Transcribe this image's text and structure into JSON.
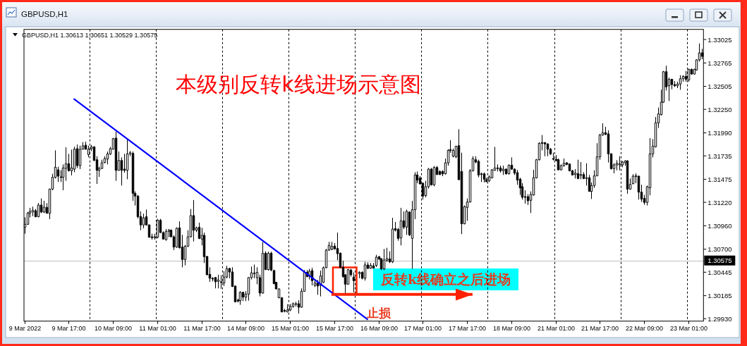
{
  "chart_data": {
    "type": "candlestick",
    "title": "本级别反转k线进场示意图",
    "subtitle": "GBPUSD,H1 1.30613 1.30651 1.30529 1.30575",
    "annotations": [
      "GBPUSD,H1",
      {
        "text": "反转k线确立之后进场",
        "y": 1.302
      },
      "止损"
    ],
    "color": "#000000",
    "categories": [
      "9 Mar 2022",
      null,
      null,
      null,
      null,
      null,
      null,
      null,
      null,
      null,
      null,
      null,
      null,
      null,
      null,
      null,
      "9 Mar 17:00",
      null,
      null,
      null,
      null,
      null,
      null,
      null,
      null,
      null,
      null,
      null,
      null,
      null,
      null,
      null,
      "10 Mar 09:00",
      null,
      null,
      null,
      null,
      null,
      null,
      null,
      null,
      null,
      null,
      null,
      null,
      null,
      null,
      null,
      "11 Mar 01:00",
      null,
      null,
      null,
      null,
      null,
      null,
      null,
      null,
      null,
      null,
      null,
      null,
      null,
      null,
      null,
      "11 Mar 17:00",
      null,
      null,
      null,
      null,
      null,
      null,
      null,
      null,
      null,
      null,
      null,
      null,
      null,
      null,
      null,
      "14 Mar 09:00",
      null,
      null,
      null,
      null,
      null,
      null,
      null,
      null,
      null,
      null,
      null,
      null,
      null,
      null,
      null,
      "15 Mar 01:00",
      null,
      null,
      null,
      null,
      null,
      null,
      null,
      null,
      null,
      null,
      null,
      null,
      null,
      null,
      null,
      "15 Mar 17:00",
      null,
      null,
      null,
      null,
      null,
      null,
      null,
      null,
      null,
      null,
      null,
      null,
      null,
      null,
      null,
      "16 Mar 09:00",
      null,
      null,
      null,
      null,
      null,
      null,
      null,
      null,
      null,
      null,
      null,
      null,
      null,
      null,
      null,
      "17 Mar 01:00",
      null,
      null,
      null,
      null,
      null,
      null,
      null,
      null,
      null,
      null,
      null,
      null,
      null,
      null,
      null,
      "17 Mar 17:00",
      null,
      null,
      null,
      null,
      null,
      null,
      null,
      null,
      null,
      null,
      null,
      null,
      null,
      null,
      null,
      "18 Mar 09:00",
      null,
      null,
      null,
      null,
      null,
      null,
      null,
      null,
      null,
      null,
      null,
      null,
      null,
      null,
      null,
      "21 Mar 01:00",
      null,
      null,
      null,
      null,
      null,
      null,
      null,
      null,
      null,
      null,
      null,
      null,
      null,
      null,
      null,
      "21 Mar 17:00",
      null,
      null,
      null,
      null,
      null,
      null,
      null,
      null,
      null,
      null,
      null,
      null,
      null,
      null,
      null,
      "22 Mar 09:00",
      null,
      null,
      null,
      null,
      null,
      null,
      null,
      null,
      null,
      null,
      null,
      null,
      null,
      null,
      null,
      "23 Mar 01:00",
      null,
      null,
      null,
      null,
      null
    ],
    "ohlc": [
      [
        1.30945,
        1.31054,
        1.30872,
        1.30976
      ],
      [
        1.30976,
        1.31112,
        1.30971,
        1.31101
      ],
      [
        1.31101,
        1.31159,
        1.31054,
        1.3112
      ],
      [
        1.31114,
        1.31172,
        1.31067,
        1.31133
      ],
      [
        1.31127,
        1.31146,
        1.31054,
        1.3106
      ],
      [
        1.3106,
        1.31211,
        1.31054,
        1.3119
      ],
      [
        1.3119,
        1.31263,
        1.31101,
        1.31112
      ],
      [
        1.31112,
        1.31237,
        1.31101,
        1.31166
      ],
      [
        1.31164,
        1.31211,
        1.31093,
        1.31099
      ],
      [
        1.31099,
        1.31372,
        1.31034,
        1.31367
      ],
      [
        1.31367,
        1.31536,
        1.31354,
        1.31497
      ],
      [
        1.31497,
        1.31796,
        1.31484,
        1.31609
      ],
      [
        1.3158,
        1.31614,
        1.31445,
        1.3151
      ],
      [
        1.31502,
        1.31575,
        1.31445,
        1.31497
      ],
      [
        1.31497,
        1.3164,
        1.31354,
        1.31601
      ],
      [
        1.31596,
        1.3183,
        1.31458,
        1.31648
      ],
      [
        1.31648,
        1.31757,
        1.31562,
        1.3157
      ],
      [
        1.3157,
        1.31804,
        1.31518,
        1.31601
      ],
      [
        1.31588,
        1.31835,
        1.31554,
        1.31809
      ],
      [
        1.31815,
        1.31861,
        1.31601,
        1.31627
      ],
      [
        1.31627,
        1.31848,
        1.31588,
        1.31809
      ],
      [
        1.31809,
        1.31887,
        1.31804,
        1.31846
      ],
      [
        1.31854,
        1.31893,
        1.31804,
        1.31809
      ],
      [
        1.31749,
        1.31848,
        1.31718,
        1.31809
      ],
      [
        1.31815,
        1.31856,
        1.31788,
        1.31835
      ],
      [
        1.31835,
        1.31841,
        1.31679,
        1.31684
      ],
      [
        1.31692,
        1.31731,
        1.31424,
        1.31575
      ],
      [
        1.31575,
        1.31614,
        1.31502,
        1.31596
      ],
      [
        1.31596,
        1.31692,
        1.31588,
        1.31658
      ],
      [
        1.31661,
        1.31731,
        1.31653,
        1.31705
      ],
      [
        1.317,
        1.31783,
        1.3164,
        1.31757
      ],
      [
        1.31757,
        1.31835,
        1.31744,
        1.31815
      ],
      [
        1.31809,
        1.31934,
        1.31804,
        1.31926
      ],
      [
        1.31932,
        1.32005,
        1.31458,
        1.31575
      ],
      [
        1.31575,
        1.31783,
        1.3157,
        1.31684
      ],
      [
        1.31684,
        1.31718,
        1.31406,
        1.31575
      ],
      [
        1.31588,
        1.31757,
        1.31549,
        1.31575
      ],
      [
        1.31575,
        1.31919,
        1.31476,
        1.31757
      ],
      [
        1.31757,
        1.31788,
        1.31731,
        1.3177
      ],
      [
        1.31762,
        1.31783,
        1.31237,
        1.3132
      ],
      [
        1.3132,
        1.31341,
        1.31185,
        1.31289
      ],
      [
        1.31289,
        1.31302,
        1.31041,
        1.3106
      ],
      [
        1.31062,
        1.3112,
        1.30911,
        1.30969
      ],
      [
        1.30969,
        1.31094,
        1.30932,
        1.31047
      ],
      [
        1.3106,
        1.3114,
        1.30963,
        1.30969
      ],
      [
        1.30969,
        1.30976,
        1.30828,
        1.30833
      ],
      [
        1.30838,
        1.30872,
        1.30807,
        1.30828
      ],
      [
        1.30828,
        1.30872,
        1.30807,
        1.30838
      ],
      [
        1.30833,
        1.31036,
        1.3082,
        1.31021
      ],
      [
        1.31021,
        1.31036,
        1.3088,
        1.30885
      ],
      [
        1.30885,
        1.30898,
        1.30807,
        1.30812
      ],
      [
        1.30807,
        1.30924,
        1.30794,
        1.30898
      ],
      [
        1.30898,
        1.30924,
        1.30833,
        1.30911
      ],
      [
        1.30911,
        1.30919,
        1.30833,
        1.30838
      ],
      [
        1.30838,
        1.30854,
        1.3069,
        1.30724
      ],
      [
        1.30724,
        1.30943,
        1.30716,
        1.30932
      ],
      [
        1.30937,
        1.3101,
        1.30708,
        1.30716
      ],
      [
        1.30724,
        1.30859,
        1.305,
        1.30586
      ],
      [
        1.30586,
        1.30747,
        1.30521,
        1.30734
      ],
      [
        1.30734,
        1.30911,
        1.30724,
        1.30838
      ],
      [
        1.30838,
        1.31146,
        1.30833,
        1.31073
      ],
      [
        1.31073,
        1.31245,
        1.30786,
        1.30911
      ],
      [
        1.30911,
        1.3095,
        1.30891,
        1.30937
      ],
      [
        1.30943,
        1.30995,
        1.30812,
        1.3082
      ],
      [
        1.30812,
        1.30937,
        1.30742,
        1.30854
      ],
      [
        1.30854,
        1.30885,
        1.30547,
        1.30617
      ],
      [
        1.3062,
        1.30625,
        1.30412,
        1.30417
      ],
      [
        1.30422,
        1.305,
        1.30339,
        1.30378
      ],
      [
        1.30378,
        1.30391,
        1.30344,
        1.3037
      ],
      [
        1.30386,
        1.30391,
        1.30266,
        1.30339
      ],
      [
        1.30344,
        1.30417,
        1.30266,
        1.30359
      ],
      [
        1.30339,
        1.30412,
        1.30261,
        1.30333
      ],
      [
        1.30326,
        1.30456,
        1.30292,
        1.30391
      ],
      [
        1.30391,
        1.30516,
        1.30378,
        1.30484
      ],
      [
        1.30487,
        1.30495,
        1.30378,
        1.30448
      ],
      [
        1.30448,
        1.305,
        1.30281,
        1.30287
      ],
      [
        1.30292,
        1.30297,
        1.3011,
        1.30117
      ],
      [
        1.30136,
        1.30151,
        1.3011,
        1.30125
      ],
      [
        1.3013,
        1.30235,
        1.30084,
        1.30222
      ],
      [
        1.30222,
        1.30227,
        1.30125,
        1.30169
      ],
      [
        1.30169,
        1.30235,
        1.30125,
        1.30203
      ],
      [
        1.30203,
        1.30391,
        1.3013,
        1.30386
      ],
      [
        1.30386,
        1.30508,
        1.30365,
        1.30438
      ],
      [
        1.3043,
        1.3053,
        1.30378,
        1.30437
      ],
      [
        1.30385,
        1.305,
        1.30312,
        1.30443
      ],
      [
        1.30385,
        1.30417,
        1.30177,
        1.30214
      ],
      [
        1.30214,
        1.30781,
        1.30208,
        1.30656
      ],
      [
        1.30656,
        1.30677,
        1.30469,
        1.30474
      ],
      [
        1.30474,
        1.30672,
        1.30463,
        1.30656
      ],
      [
        1.30656,
        1.30672,
        1.30456,
        1.30469
      ],
      [
        1.30463,
        1.30474,
        1.30312,
        1.30318
      ],
      [
        1.30333,
        1.30339,
        1.30255,
        1.3026
      ],
      [
        1.30162,
        1.30266,
        1.30156,
        1.3026
      ],
      [
        1.30162,
        1.30169,
        1.3,
        1.30005
      ],
      [
        1.30021,
        1.30039,
        1.3,
        1.30013
      ],
      [
        1.30005,
        1.30091,
        1.3,
        1.30026
      ],
      [
        1.30026,
        1.30091,
        1.30013,
        1.30065
      ],
      [
        1.30065,
        1.30109,
        1.30052,
        1.30096
      ],
      [
        1.30089,
        1.30117,
        1.30065,
        1.30096
      ],
      [
        1.30096,
        1.30135,
        1.29987,
        1.30057
      ],
      [
        1.30057,
        1.30266,
        1.30052,
        1.30234
      ],
      [
        1.30234,
        1.30469,
        1.30229,
        1.30443
      ],
      [
        1.30443,
        1.30469,
        1.30391,
        1.30396
      ],
      [
        1.30404,
        1.30482,
        1.30365,
        1.30456
      ],
      [
        1.30463,
        1.30495,
        1.30299,
        1.30352
      ],
      [
        1.30299,
        1.3037,
        1.30281,
        1.30326
      ],
      [
        1.30326,
        1.30359,
        1.30195,
        1.30292
      ],
      [
        1.30299,
        1.30463,
        1.30177,
        1.30404
      ],
      [
        1.30333,
        1.30508,
        1.30326,
        1.30495
      ],
      [
        1.30495,
        1.30703,
        1.30489,
        1.3069
      ],
      [
        1.3069,
        1.30781,
        1.30682,
        1.30742
      ],
      [
        1.30698,
        1.30781,
        1.3069,
        1.30734
      ],
      [
        1.30734,
        1.30768,
        1.30698,
        1.30703
      ],
      [
        1.30708,
        1.30885,
        1.30578,
        1.30651
      ],
      [
        1.30656,
        1.30664,
        1.30489,
        1.305
      ],
      [
        1.305,
        1.30573,
        1.30385,
        1.30396
      ],
      [
        1.30417,
        1.30422,
        1.30214,
        1.30312
      ],
      [
        1.30312,
        1.30482,
        1.30307,
        1.30474
      ],
      [
        1.30469,
        1.30482,
        1.30396,
        1.30417
      ],
      [
        1.30391,
        1.30443,
        1.30221,
        1.30352
      ],
      null,
      [
        1.3043,
        1.30456,
        1.30378,
        1.30443
      ],
      [
        1.30443,
        1.30456,
        1.30365,
        1.30378
      ],
      [
        1.30378,
        1.3056,
        1.30352,
        1.30526
      ],
      [
        1.30526,
        1.30555,
        1.30482,
        1.30487
      ],
      [
        1.3049,
        1.30547,
        1.30482,
        1.30521
      ],
      [
        1.30516,
        1.30547,
        1.30487,
        1.3049
      ],
      [
        1.30521,
        1.30638,
        1.30503,
        1.30612
      ],
      [
        1.30617,
        1.30625,
        1.30581,
        1.30591
      ],
      [
        1.30596,
        1.30599,
        1.30469,
        1.30482
      ],
      [
        1.30482,
        1.30703,
        1.30469,
        1.30581
      ],
      [
        1.30578,
        1.30716,
        1.3056,
        1.30596
      ],
      [
        1.30594,
        1.30677,
        1.30547,
        1.3056
      ],
      [
        1.3056,
        1.31049,
        1.30547,
        1.30924
      ],
      [
        1.30929,
        1.31002,
        1.30898,
        1.30911
      ],
      [
        1.30919,
        1.30937,
        1.30794,
        1.3082
      ],
      [
        1.30825,
        1.31159,
        1.30742,
        1.31015
      ],
      [
        1.31015,
        1.3112,
        1.30924,
        1.30945
      ],
      [
        1.30945,
        1.31138,
        1.30859,
        1.3112
      ],
      [
        1.31112,
        1.3112,
        1.30846,
        1.30859
      ],
      [
        1.3082,
        1.31237,
        1.30482,
        1.31138
      ],
      [
        1.31138,
        1.31554,
        1.31034,
        1.31523
      ],
      [
        1.31523,
        1.31562,
        1.31432,
        1.31466
      ],
      [
        1.31489,
        1.3151,
        1.31419,
        1.31424
      ],
      [
        1.31432,
        1.3144,
        1.3125,
        1.31289
      ],
      [
        1.31294,
        1.31458,
        1.31276,
        1.31393
      ],
      [
        1.31393,
        1.31601,
        1.31372,
        1.31588
      ],
      [
        1.31588,
        1.31601,
        1.31406,
        1.31414
      ],
      [
        1.31414,
        1.31622,
        1.31398,
        1.31606
      ],
      [
        1.31606,
        1.31622,
        1.31523,
        1.31528
      ],
      [
        1.31562,
        1.31575,
        1.31523,
        1.31528
      ],
      [
        1.31562,
        1.31575,
        1.3151,
        1.31536
      ],
      [
        1.31536,
        1.31705,
        1.31528,
        1.31658
      ],
      [
        1.31658,
        1.31809,
        1.31627,
        1.31796
      ],
      [
        1.31804,
        1.31908,
        1.3177,
        1.31796
      ],
      [
        1.31731,
        1.31815,
        1.31718,
        1.31796
      ],
      [
        1.31726,
        1.31848,
        1.3171,
        1.31841
      ],
      [
        1.31848,
        1.3203,
        1.31466,
        1.31471
      ],
      [
        1.31562,
        1.3177,
        1.30867,
        1.30982
      ],
      [
        1.30982,
        1.31185,
        1.30976,
        1.31172
      ],
      [
        1.31164,
        1.31263,
        1.31015,
        1.31224
      ],
      [
        1.31224,
        1.31588,
        1.31216,
        1.3157
      ],
      [
        1.3157,
        1.31731,
        1.31562,
        1.31705
      ],
      [
        1.31692,
        1.31731,
        1.31653,
        1.31666
      ],
      [
        1.31674,
        1.31692,
        1.31497,
        1.31523
      ],
      [
        1.31528,
        1.31549,
        1.31445,
        1.31536
      ],
      [
        1.31536,
        1.31549,
        1.3144,
        1.31476
      ],
      [
        1.31471,
        1.31492,
        1.3144,
        1.3145
      ],
      [
        1.31458,
        1.31518,
        1.31445,
        1.31502
      ],
      [
        1.31492,
        1.31588,
        1.31484,
        1.3158
      ],
      [
        1.31575,
        1.31835,
        1.3157,
        1.31601
      ],
      [
        1.31601,
        1.3164,
        1.31562,
        1.31596
      ],
      [
        1.31601,
        1.31627,
        1.31549,
        1.3157
      ],
      [
        1.3157,
        1.31627,
        1.31523,
        1.31588
      ],
      [
        1.31588,
        1.31596,
        1.31528,
        1.31536
      ],
      [
        1.31536,
        1.3164,
        1.31528,
        1.31632
      ],
      [
        1.31632,
        1.31718,
        1.3158,
        1.31588
      ],
      [
        1.31588,
        1.31596,
        1.31523,
        1.31544
      ],
      [
        1.31549,
        1.3158,
        1.31414,
        1.31466
      ],
      [
        1.31476,
        1.31492,
        1.31302,
        1.3138
      ],
      [
        1.31393,
        1.31432,
        1.3125,
        1.31276
      ],
      [
        1.31283,
        1.31354,
        1.31205,
        1.31276
      ],
      [
        1.31283,
        1.3131,
        1.3119,
        1.31237
      ],
      [
        1.31242,
        1.31341,
        1.31101,
        1.31307
      ],
      [
        1.31302,
        1.3158,
        1.31294,
        1.31492
      ],
      [
        1.31492,
        1.317,
        1.31484,
        1.31692
      ],
      [
        1.31692,
        1.31887,
        1.31684,
        1.31874
      ],
      [
        1.31882,
        1.31966,
        1.31796,
        1.31874
      ],
      [
        1.31882,
        1.31887,
        1.31731,
        1.31867
      ],
      [
        1.31867,
        1.31874,
        1.31731,
        1.31809
      ],
      [
        1.31809,
        1.31822,
        1.31744,
        1.31757
      ],
      [
        1.31705,
        1.3177,
        1.31684,
        1.31697
      ],
      [
        1.31697,
        1.31744,
        1.31674,
        1.31684
      ],
      [
        1.31692,
        1.31705,
        1.31575,
        1.3158
      ],
      [
        1.3158,
        1.3164,
        1.31575,
        1.31627
      ],
      [
        1.31627,
        1.31705,
        1.31614,
        1.31653
      ],
      [
        1.31658,
        1.31664,
        1.31632,
        1.3164
      ],
      [
        1.31645,
        1.31648,
        1.31562,
        1.3157
      ],
      [
        1.3157,
        1.3158,
        1.31518,
        1.31523
      ],
      [
        1.31528,
        1.31588,
        1.31484,
        1.31544
      ],
      [
        1.31539,
        1.31692,
        1.31476,
        1.31484
      ],
      [
        1.31518,
        1.31666,
        1.31476,
        1.31528
      ],
      [
        1.31528,
        1.31554,
        1.31476,
        1.31484
      ],
      [
        1.31484,
        1.31653,
        1.31406,
        1.31492
      ],
      [
        1.31492,
        1.31523,
        1.31341,
        1.31341
      ],
      [
        1.31341,
        1.3144,
        1.31257,
        1.31406
      ],
      [
        1.31406,
        1.31575,
        1.3138,
        1.31513
      ],
      [
        1.31513,
        1.31875,
        1.3151,
        1.31724
      ],
      [
        1.31724,
        1.31979,
        1.31692,
        1.31966
      ],
      [
        1.31966,
        1.32096,
        1.31958,
        1.31992
      ],
      [
        1.31992,
        1.32057,
        1.31966,
        1.31973
      ],
      [
        1.31979,
        1.32018,
        1.31661,
        1.31757
      ],
      [
        1.31757,
        1.31765,
        1.31583,
        1.31593
      ],
      [
        1.31593,
        1.31653,
        1.31541,
        1.31635
      ],
      [
        1.31635,
        1.31687,
        1.31575,
        1.31653
      ],
      [
        1.31635,
        1.31731,
        1.31575,
        1.31646
      ],
      [
        1.31635,
        1.31679,
        1.31609,
        1.31666
      ],
      [
        1.31661,
        1.31687,
        1.31627,
        1.31679
      ],
      [
        1.31679,
        1.31687,
        1.31315,
        1.31367
      ],
      [
        1.31367,
        1.31484,
        1.31359,
        1.31419
      ],
      [
        1.31427,
        1.31531,
        1.31419,
        1.3151
      ],
      [
        1.31505,
        1.31541,
        1.31432,
        1.31515
      ],
      [
        1.3151,
        1.31515,
        1.3125,
        1.31333
      ],
      [
        1.31333,
        1.31415,
        1.31224,
        1.31255
      ],
      [
        1.31263,
        1.31302,
        1.31193,
        1.31219
      ],
      [
        1.31219,
        1.31406,
        1.31185,
        1.31393
      ],
      [
        1.3138,
        1.31932,
        1.31297,
        1.31757
      ],
      [
        1.31757,
        1.31921,
        1.31718,
        1.31843
      ],
      [
        1.31836,
        1.32166,
        1.31828,
        1.32101
      ],
      [
        1.32101,
        1.3227,
        1.32044,
        1.322
      ],
      [
        1.32192,
        1.32468,
        1.32182,
        1.3233
      ],
      [
        1.3233,
        1.32676,
        1.32322,
        1.32668
      ],
      [
        1.32668,
        1.32734,
        1.3246,
        1.32499
      ],
      [
        1.32512,
        1.32603,
        1.32343,
        1.32583
      ],
      [
        1.32583,
        1.3259,
        1.32473,
        1.32525
      ],
      [
        1.32525,
        1.32564,
        1.32499,
        1.32512
      ],
      [
        1.32512,
        1.32557,
        1.32486,
        1.32531
      ],
      [
        1.32531,
        1.32629,
        1.32468,
        1.3259
      ],
      [
        1.3259,
        1.32629,
        1.32557,
        1.32616
      ],
      [
        1.32616,
        1.32676,
        1.32557,
        1.32583
      ],
      [
        1.32577,
        1.32702,
        1.32557,
        1.32694
      ],
      [
        1.32694,
        1.32702,
        1.32635,
        1.32642
      ],
      [
        1.32642,
        1.32702,
        1.32635,
        1.32694
      ],
      [
        1.32687,
        1.32806,
        1.32681,
        1.32799
      ],
      [
        1.32799,
        1.32981,
        1.3278,
        1.32877
      ],
      [
        1.32877,
        1.32921,
        1.32806,
        1.32838
      ]
    ],
    "series": [
      {
        "type": "line",
        "color": "#0000ff",
        "values": [
          null,
          null,
          null,
          null,
          null,
          null,
          null,
          null,
          null,
          null,
          null,
          null,
          null,
          null,
          null,
          null,
          null,
          null,
          1.32364,
          null,
          null,
          null,
          null,
          null,
          null,
          null,
          null,
          null,
          null,
          null,
          null,
          null,
          null,
          null,
          null,
          null,
          null,
          null,
          null,
          null,
          null,
          null,
          null,
          null,
          null,
          null,
          null,
          null,
          null,
          null,
          null,
          null,
          null,
          null,
          null,
          null,
          null,
          null,
          null,
          null,
          null,
          null,
          null,
          null,
          null,
          null,
          null,
          null,
          null,
          null,
          null,
          null,
          null,
          null,
          null,
          null,
          null,
          null,
          null,
          null,
          null,
          null,
          null,
          null,
          null,
          null,
          null,
          null,
          null,
          null,
          null,
          null,
          null,
          null,
          null,
          null,
          null,
          null,
          null,
          null,
          null,
          null,
          null,
          null,
          null,
          null,
          null,
          null,
          null,
          null,
          null,
          null,
          null,
          null,
          null,
          null,
          null,
          null,
          null,
          null,
          null,
          null,
          null,
          null,
          1.29924,
          null,
          null,
          null,
          null,
          null,
          null,
          null,
          null,
          null,
          null,
          null,
          null,
          null,
          null,
          null,
          null,
          null,
          null,
          null,
          null,
          null,
          null,
          null,
          null,
          null,
          null,
          null,
          null,
          null,
          null,
          null,
          null,
          null,
          null,
          null,
          null,
          null,
          null,
          null,
          null,
          null,
          null,
          null,
          null,
          null,
          null,
          null,
          null,
          null,
          null,
          null,
          null,
          null,
          null,
          null,
          null,
          null,
          null,
          null,
          null,
          null,
          null,
          null,
          null,
          null,
          null,
          null,
          null,
          null,
          null,
          null,
          null,
          null,
          null,
          null,
          null,
          null,
          null,
          null,
          null,
          null,
          null,
          null,
          null,
          null,
          null,
          null,
          null,
          null,
          null,
          null,
          null,
          null,
          null,
          null,
          null,
          null,
          null,
          null,
          null,
          null,
          null,
          null,
          null,
          null,
          null,
          null,
          null,
          null,
          null,
          null,
          null,
          null,
          null,
          null,
          null,
          null,
          null,
          null,
          null,
          null
        ]
      },
      {
        "type": "line",
        "color": "#ff2200",
        "values": [
          null,
          null,
          null,
          null,
          null,
          null,
          null,
          null,
          null,
          null,
          null,
          null,
          null,
          null,
          null,
          null,
          null,
          null,
          null,
          null,
          null,
          null,
          null,
          null,
          null,
          null,
          null,
          null,
          null,
          null,
          null,
          null,
          null,
          null,
          null,
          null,
          null,
          null,
          null,
          null,
          null,
          null,
          null,
          null,
          null,
          null,
          null,
          null,
          null,
          null,
          null,
          null,
          null,
          null,
          null,
          null,
          null,
          null,
          null,
          null,
          null,
          null,
          null,
          null,
          null,
          null,
          null,
          null,
          null,
          null,
          null,
          null,
          null,
          null,
          null,
          null,
          null,
          null,
          null,
          null,
          null,
          null,
          null,
          null,
          null,
          null,
          null,
          null,
          null,
          null,
          null,
          null,
          null,
          null,
          null,
          null,
          null,
          null,
          null,
          null,
          null,
          null,
          null,
          null,
          null,
          null,
          null,
          null,
          null,
          null,
          null,
          1.302,
          null,
          null,
          null,
          null,
          null,
          null,
          null,
          null,
          null,
          null,
          null,
          null,
          null,
          null,
          null,
          null,
          null,
          null,
          null,
          null,
          null,
          null,
          null,
          null,
          null,
          null,
          null,
          null,
          null,
          null,
          null,
          null,
          null,
          null,
          null,
          null,
          null,
          null,
          null,
          null,
          null,
          null,
          null,
          null,
          null,
          null,
          null,
          null,
          null,
          null,
          1.302,
          null,
          null,
          null,
          null,
          null,
          null,
          null,
          null,
          null,
          null,
          null,
          null,
          null,
          null,
          null,
          null,
          null,
          null,
          null,
          null,
          null,
          null,
          null,
          null,
          null,
          null,
          null,
          null,
          null,
          null,
          null,
          null,
          null,
          null,
          null,
          null,
          null,
          null,
          null,
          null,
          null,
          null,
          null,
          null,
          null,
          null,
          null,
          null,
          null,
          null,
          null,
          null,
          null,
          null,
          null,
          null,
          null,
          null,
          null,
          null,
          null,
          null,
          null,
          null,
          null,
          null,
          null,
          null,
          null,
          null,
          null,
          null,
          null,
          null,
          null,
          null,
          null,
          null,
          null,
          null,
          null,
          null,
          null
        ]
      }
    ],
    "ylim": [
      1.29903,
      1.33137
    ],
    "yticks": [
      1.33025,
      1.32765,
      1.32505,
      {
        "value": 1.3225,
        "label": "1.32250"
      },
      {
        "value": 1.3199,
        "label": "1.31990"
      },
      1.31735,
      1.31475,
      {
        "value": 1.3122,
        "label": "1.31220"
      },
      {
        "value": 1.3096,
        "label": "1.30960"
      },
      {
        "value": 1.307,
        "label": "1.30700"
      },
      1.30445,
      1.30185,
      {
        "value": 1.2993,
        "label": "1.29930"
      }
    ],
    "ref_lines": [
      {
        "axis": "y",
        "value": 1.30575,
        "label": "1.30575",
        "color": "#c0c0c0"
      }
    ]
  }
}
